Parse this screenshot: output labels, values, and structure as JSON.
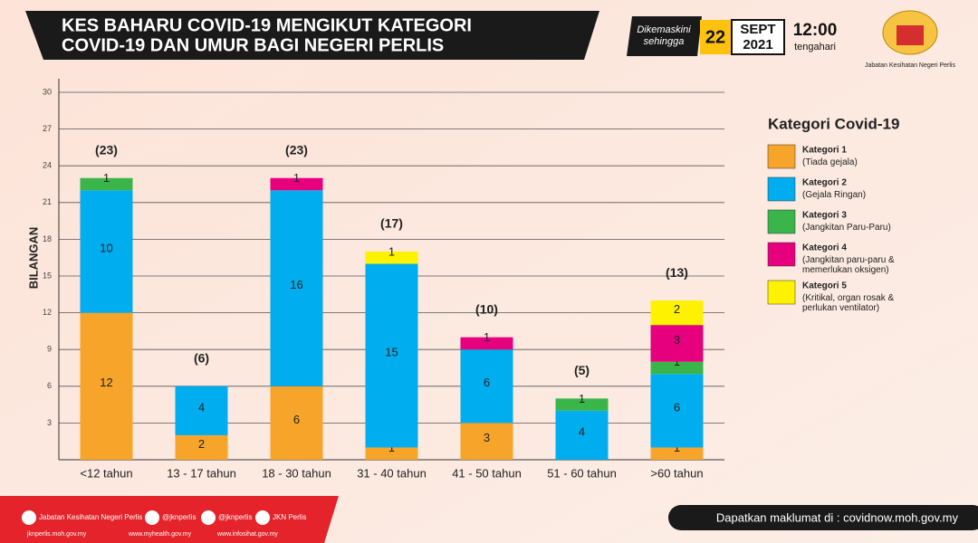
{
  "header": {
    "title": [
      "KES BAHARU COVID-19 MENGIKUT KATEGORI",
      "COVID-19 DAN UMUR BAGI NEGERI PERLIS"
    ],
    "updated": [
      "Dikemaskini",
      "sehingga"
    ],
    "day": "22",
    "month": "SEPT",
    "year": "2021",
    "time": "12:00",
    "time_note": "tengahari",
    "agency": "Jabatan Kesihatan Negeri Perlis"
  },
  "chart_data": {
    "type": "stacked_bar",
    "categories": [
      "<12 tahun",
      "13 - 17 tahun",
      "18 - 30 tahun",
      "31 - 40 tahun",
      "41 - 50 tahun",
      "51 - 60 tahun",
      ">60 tahun"
    ],
    "series": [
      {
        "name": "Kategori 1",
        "description": "(Tiada gejala)",
        "color": "#f7a42b",
        "values": [
          12,
          2,
          6,
          1,
          3,
          0,
          1
        ]
      },
      {
        "name": "Kategori 2",
        "description": "(Gejala Ringan)",
        "color": "#00aeef",
        "values": [
          10,
          4,
          16,
          15,
          6,
          4,
          6
        ]
      },
      {
        "name": "Kategori 3",
        "description": "(Jangkitan Paru-Paru)",
        "color": "#39b54a",
        "values": [
          1,
          0,
          0,
          0,
          0,
          1,
          1
        ]
      },
      {
        "name": "Kategori 4",
        "description": "(Jangkitan paru-paru & memerlukan oksigen)",
        "color": "#e6007e",
        "values": [
          0,
          0,
          1,
          0,
          1,
          0,
          3
        ]
      },
      {
        "name": "Kategori 5",
        "description": "(Kritikal, organ rosak & perlukan ventilator)",
        "color": "#fff200",
        "values": [
          0,
          0,
          0,
          1,
          0,
          0,
          2
        ]
      }
    ],
    "totals": {
      "values": [
        23,
        6,
        23,
        17,
        10,
        5,
        13
      ],
      "value_labels": [
        "(23)",
        "(6)",
        "(23)",
        "(17)",
        "(10)",
        "(5)",
        "(13)"
      ]
    },
    "ylabel": "BILANGAN",
    "ylim": [
      0,
      30
    ],
    "yticks": [
      3,
      6,
      9,
      12,
      15,
      18,
      21,
      24,
      27,
      30
    ],
    "grid": true,
    "legend_title": "Kategori Covid-19",
    "legend": "right"
  },
  "footer": {
    "social": [
      "Jabatan Kesihatan Negeri Perlis",
      "@jknperlis",
      "@jknperlis",
      "JKN Perlis"
    ],
    "links": [
      "jknperlis.moh.gov.my",
      "www.myhealth.gov.my",
      "www.infosihat.gov.my"
    ],
    "info": "Dapatkan maklumat di : covidnow.moh.gov.my"
  }
}
